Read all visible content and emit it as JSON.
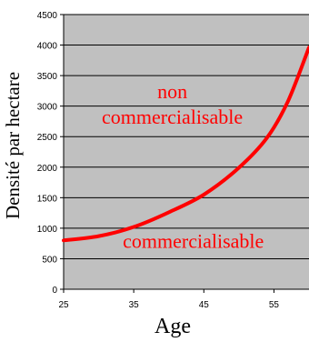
{
  "chart_data": {
    "type": "line",
    "title": "",
    "xlabel": "Age",
    "ylabel": "Densité par hectare",
    "xlim": [
      25,
      60
    ],
    "ylim": [
      0,
      4500
    ],
    "x_ticks": [
      25,
      35,
      45,
      55
    ],
    "y_ticks": [
      0,
      500,
      1000,
      1500,
      2000,
      2500,
      3000,
      3500,
      4000,
      4500
    ],
    "grid": true,
    "legend": "none",
    "background_color": "#c0c0c0",
    "series": [
      {
        "color": "#ff0000",
        "x": [
          25,
          30,
          35,
          40,
          45,
          50,
          54,
          57,
          60
        ],
        "y": [
          800,
          870,
          1020,
          1260,
          1550,
          1990,
          2480,
          3080,
          3960
        ]
      }
    ],
    "annotations": [
      {
        "text": "non",
        "color": "#ff0000",
        "at": [
          40.5,
          3130
        ]
      },
      {
        "text": "commercialisable",
        "color": "#ff0000",
        "at": [
          40.5,
          2710
        ]
      },
      {
        "text": "commercialisable",
        "color": "#ff0000",
        "at": [
          43.5,
          680
        ]
      }
    ]
  }
}
